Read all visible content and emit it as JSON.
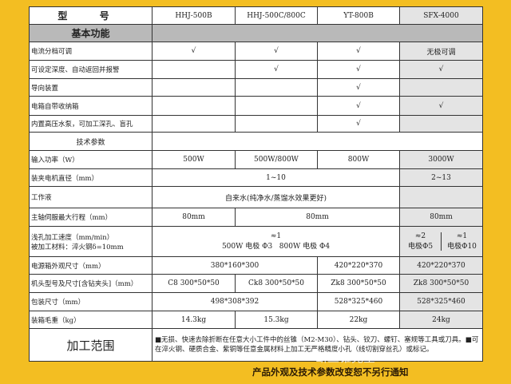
{
  "header": {
    "label": "型 号",
    "models": [
      "HHJ-500B",
      "HHJ-500C/800C",
      "YT-800B",
      "SFX-4000"
    ]
  },
  "basic": {
    "title": "基本功能",
    "rows": [
      {
        "label": "电流分档可调",
        "vals": [
          "√",
          "√",
          "√",
          "无极可调"
        ]
      },
      {
        "label": "可设定深度、自动返回并报警",
        "vals": [
          "",
          "√",
          "√",
          "√"
        ]
      },
      {
        "label": "导向装置",
        "vals": [
          "",
          "",
          "√",
          ""
        ]
      },
      {
        "label": "电箱自带收纳箱",
        "vals": [
          "",
          "",
          "√",
          "√"
        ]
      },
      {
        "label": "内置高压水泵，可加工深孔、盲孔",
        "vals": [
          "",
          "",
          "√",
          ""
        ]
      }
    ]
  },
  "tech": {
    "title": "技术参数",
    "power": {
      "label": "输入功率（W）",
      "vals": [
        "500W",
        "500W/800W",
        "800W",
        "3000W"
      ]
    },
    "dia": {
      "label": "装夹电机直径（mm）",
      "vals": [
        "1~10",
        "2~13"
      ]
    },
    "fluid": {
      "label": "工作液",
      "val": "自来水(纯净水/蒸馏水效果更好)"
    },
    "stroke": {
      "label": "主轴伺服最大行程（mm）",
      "vals": [
        "80mm",
        "80mm",
        "80mm"
      ]
    },
    "speed": {
      "label1": "浅孔加工速度（mm/min）",
      "label2": "被加工材料：淬火钢δ=10mm",
      "main1": "≈1",
      "main2": "500W 电极 Φ3   800W 电极 Φ4",
      "s1a": "≈2",
      "s1b": "电极Φ5",
      "s2a": "≈1",
      "s2b": "电极Φ10"
    },
    "box": {
      "label": "电源箱外观尺寸（mm）",
      "vals": [
        "380*160*300",
        "420*220*370",
        "420*220*370"
      ]
    },
    "head": {
      "label": "机头型号及尺寸[含钻夹头]（mm）",
      "vals": [
        "C8 300*50*50",
        "Ck8 300*50*50",
        "Zk8 300*50*50",
        "Zk8 300*50*50"
      ]
    },
    "pack": {
      "label": "包装尺寸（mm）",
      "vals": [
        "498*308*392",
        "528*325*460",
        "528*325*460"
      ]
    },
    "weight": {
      "label": "装箱毛重（kg）",
      "vals": [
        "14.3kg",
        "15.3kg",
        "22kg",
        "24kg"
      ]
    }
  },
  "scope": {
    "label": "加工范围",
    "text": "■无损、快速去除折断在任意大小工件中的丝锥（M2-M30）、钻头、铰刀、螺钉、塞规等工具或刀具。■可在淬火钢、硬质合金、紫铜等任意金属材料上加工无严格精度小孔（线切割穿丝孔）或标记。"
  },
  "watermark": "断丝锥克星",
  "footer": "产品外观及技术参数改变恕不另行通知",
  "colors": {
    "background": "#f3be22",
    "section": "#b9b9b9",
    "highlight_column": "#e4e4e4"
  }
}
